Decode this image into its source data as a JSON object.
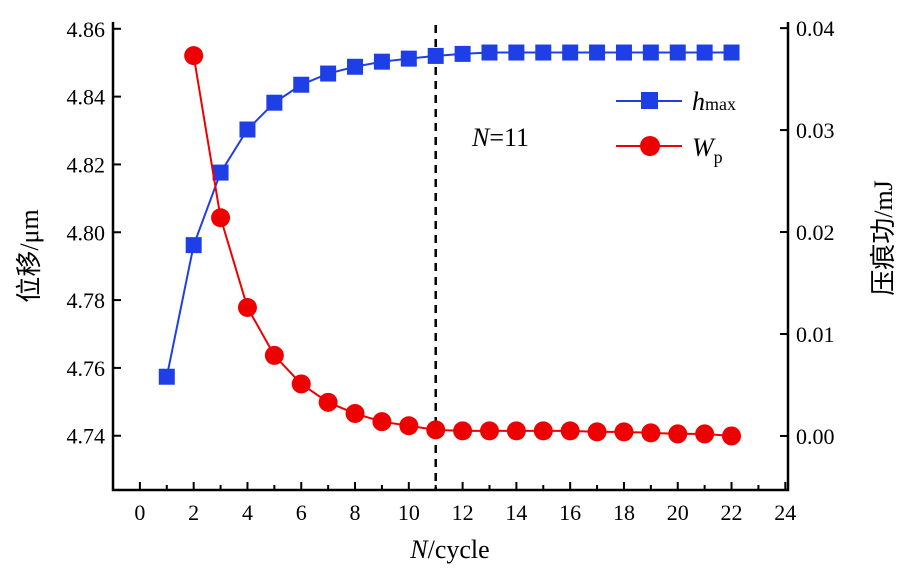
{
  "chart_data": {
    "type": "line",
    "xlabel_italic": "N",
    "xlabel_rest": "/cycle",
    "ylabel_left": "位移/μm",
    "ylabel_right": "压痕功/mJ",
    "xlim": [
      -1,
      24.1
    ],
    "xticks": [
      0,
      2,
      4,
      6,
      8,
      10,
      12,
      14,
      16,
      18,
      20,
      22,
      24
    ],
    "ylim_left": [
      4.724,
      4.862
    ],
    "yticks_left": [
      "4.74",
      "4.76",
      "4.78",
      "4.80",
      "4.82",
      "4.84",
      "4.86"
    ],
    "ylim_right": [
      -0.0053,
      0.0406
    ],
    "yticks_right": [
      "0.00",
      "0.01",
      "0.02",
      "0.03",
      "0.04"
    ],
    "grid": false,
    "legend_position": "top-right",
    "series": [
      {
        "name": "h",
        "name_sub": "max",
        "axis": "left",
        "marker": "square",
        "color": "#1f3fe6",
        "x": [
          1,
          2,
          3,
          4,
          5,
          6,
          7,
          8,
          9,
          10,
          11,
          12,
          13,
          14,
          15,
          16,
          17,
          18,
          19,
          20,
          21,
          22
        ],
        "values": [
          4.7574,
          4.7962,
          4.8176,
          4.8303,
          4.8382,
          4.8435,
          4.8468,
          4.8488,
          4.8503,
          4.8512,
          4.852,
          4.8526,
          4.853,
          4.853,
          4.853,
          4.853,
          4.853,
          4.853,
          4.853,
          4.853,
          4.853,
          4.853
        ]
      },
      {
        "name": "W",
        "name_sub": "p",
        "axis": "right",
        "marker": "circle",
        "color": "#ee0000",
        "x": [
          2,
          3,
          4,
          5,
          6,
          7,
          8,
          9,
          10,
          11,
          12,
          13,
          14,
          15,
          16,
          17,
          18,
          19,
          20,
          21,
          22
        ],
        "values": [
          0.0373,
          0.0214,
          0.0126,
          0.0079,
          0.0051,
          0.0033,
          0.0022,
          0.0014,
          0.001,
          0.0006,
          0.0005,
          0.0005,
          0.0005,
          0.0005,
          0.0005,
          0.0004,
          0.0004,
          0.0003,
          0.0002,
          0.0002,
          0.0
        ]
      }
    ],
    "annotation": {
      "x": 11,
      "italic": "N",
      "text": "=11",
      "line_style": "dashed"
    }
  }
}
